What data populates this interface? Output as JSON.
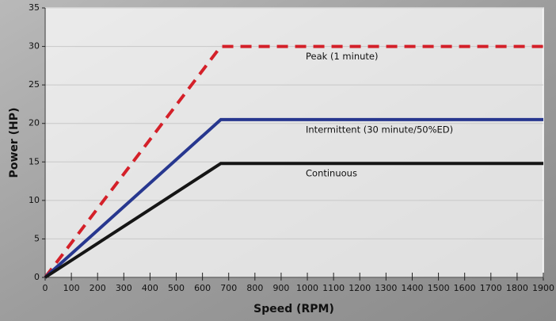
{
  "chart_data": {
    "type": "line",
    "x_label": "Speed (RPM)",
    "y_label": "Power (HP)",
    "x": [
      0,
      670,
      1900
    ],
    "series": [
      {
        "name": "Peak (1 minute)",
        "color": "#d42029",
        "dashed": true,
        "values": [
          0,
          30,
          30
        ]
      },
      {
        "name": "Intermittent (30 minute/50%ED)",
        "color": "#27378f",
        "dashed": false,
        "values": [
          0,
          20.5,
          20.5
        ]
      },
      {
        "name": "Continuous",
        "color": "#151515",
        "dashed": false,
        "values": [
          0,
          14.8,
          14.8
        ]
      }
    ],
    "xlim": [
      0,
      1900
    ],
    "xticks": [
      0,
      100,
      200,
      300,
      400,
      500,
      600,
      700,
      800,
      900,
      1000,
      1100,
      1200,
      1300,
      1400,
      1500,
      1600,
      1700,
      1800,
      1900
    ],
    "ylim": [
      0,
      35
    ],
    "yticks": [
      0,
      5,
      10,
      15,
      20,
      25,
      30,
      35
    ],
    "grid": true
  }
}
